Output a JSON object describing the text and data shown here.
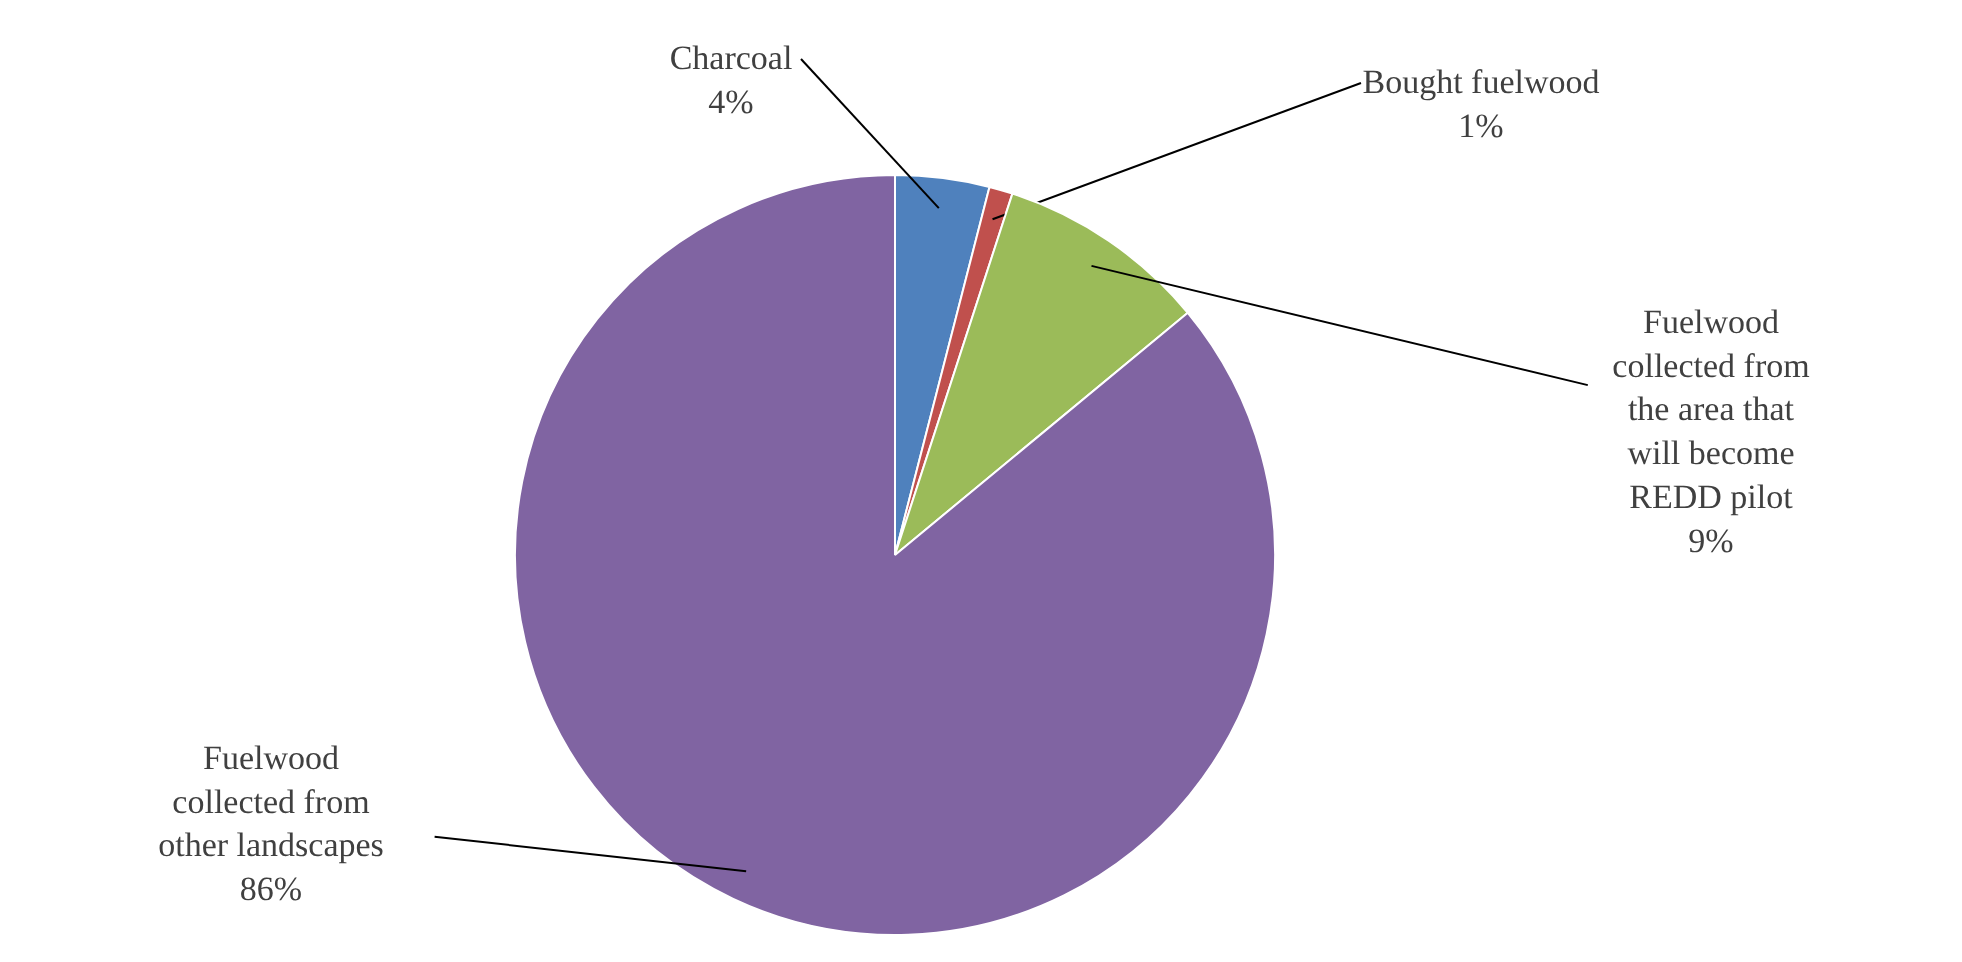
{
  "chart_data": {
    "type": "pie",
    "categories": [
      "Charcoal",
      "Bought fuelwood",
      "Fuelwood collected from the area that will become REDD pilot",
      "Fuelwood collected from other landscapes"
    ],
    "values": [
      4,
      1,
      9,
      86
    ],
    "colors": [
      "#4f81bd",
      "#c0504d",
      "#9bbb59",
      "#8064a2"
    ],
    "value_labels": [
      "4%",
      "1%",
      "9%",
      "86%"
    ]
  }
}
